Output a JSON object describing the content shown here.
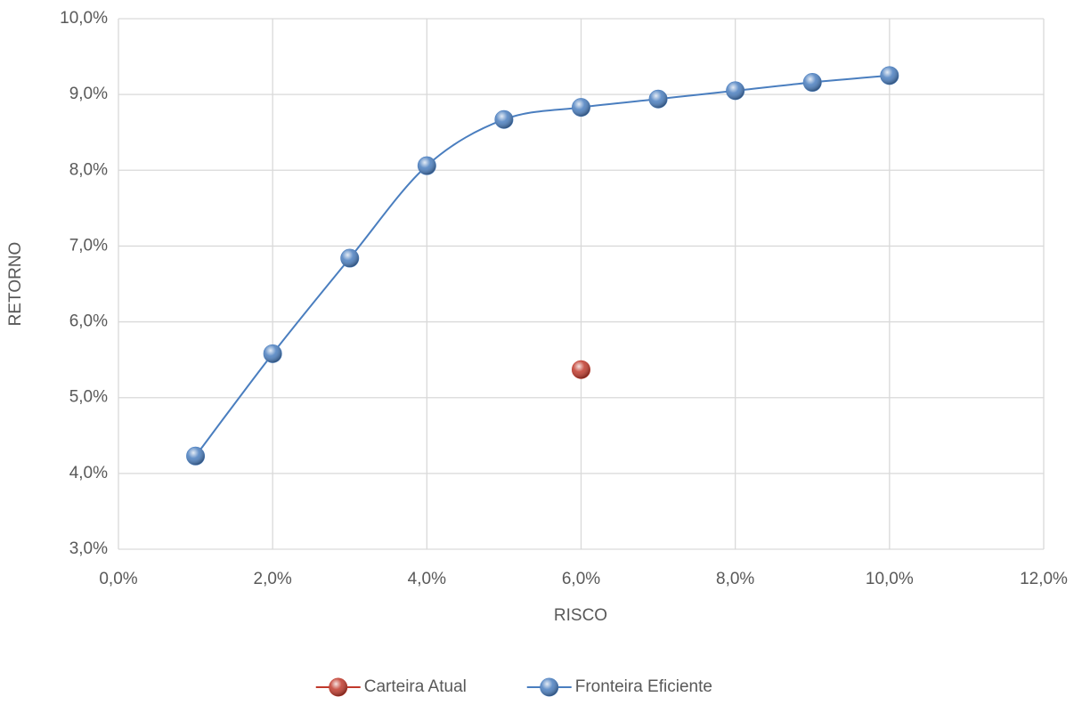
{
  "chart_data": {
    "type": "scatter",
    "xlabel": "RISCO",
    "ylabel": "RETORNO",
    "xlim": [
      0,
      12
    ],
    "xticks": [
      {
        "value": 0,
        "label": "0,0%"
      },
      {
        "value": 2,
        "label": "2,0%"
      },
      {
        "value": 4,
        "label": "4,0%"
      },
      {
        "value": 6,
        "label": "6,0%"
      },
      {
        "value": 8,
        "label": "8,0%"
      },
      {
        "value": 10,
        "label": "10,0%"
      },
      {
        "value": 12,
        "label": "12,0%"
      }
    ],
    "ylim": [
      3,
      10
    ],
    "yticks": [
      {
        "value": 3,
        "label": "3,0%"
      },
      {
        "value": 4,
        "label": "4,0%"
      },
      {
        "value": 5,
        "label": "5,0%"
      },
      {
        "value": 6,
        "label": "6,0%"
      },
      {
        "value": 7,
        "label": "7,0%"
      },
      {
        "value": 8,
        "label": "8,0%"
      },
      {
        "value": 9,
        "label": "9,0%"
      },
      {
        "value": 10,
        "label": "10,0%"
      }
    ],
    "grid": true,
    "legend": "bottom",
    "series": [
      {
        "name": "Carteira Atual",
        "color": "#c0392b",
        "line": false,
        "x": [
          6
        ],
        "values": [
          5.37
        ]
      },
      {
        "name": "Fronteira Eficiente",
        "color": "#4a7ebf",
        "line": true,
        "smooth": true,
        "x": [
          1,
          2,
          3,
          4,
          5,
          6,
          7,
          8,
          9,
          10
        ],
        "values": [
          4.23,
          5.58,
          6.84,
          8.06,
          8.67,
          8.83,
          8.94,
          9.05,
          9.16,
          9.25
        ]
      }
    ]
  }
}
